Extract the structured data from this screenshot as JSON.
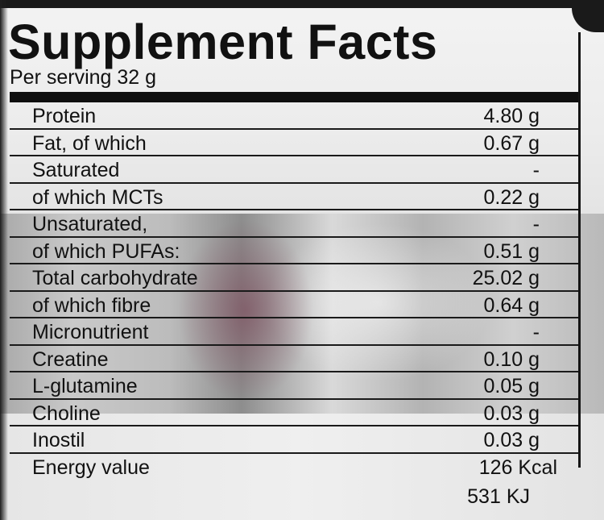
{
  "label": {
    "title": "Supplement Facts",
    "serving": "Per serving 32 g",
    "rows": [
      {
        "name": "Protein",
        "amount": "4.80 g"
      },
      {
        "name": "Fat, of which",
        "amount": "0.67 g"
      },
      {
        "name": "Saturated",
        "amount": "-"
      },
      {
        "name": "of which MCTs",
        "amount": "0.22 g"
      },
      {
        "name": "Unsaturated,",
        "amount": "-"
      },
      {
        "name": "of which PUFAs:",
        "amount": "0.51 g"
      },
      {
        "name": "Total carbohydrate",
        "amount": "25.02 g"
      },
      {
        "name": "of which fibre",
        "amount": "0.64 g"
      },
      {
        "name": "Micronutrient",
        "amount": "-"
      },
      {
        "name": "Creatine",
        "amount": "0.10 g"
      },
      {
        "name": "L-glutamine",
        "amount": "0.05 g"
      },
      {
        "name": "Choline",
        "amount": "0.03 g"
      },
      {
        "name": "Inostil",
        "amount": "0.03 g"
      },
      {
        "name": "Energy value",
        "amount": "126 Kcal",
        "amount2": "531 KJ"
      }
    ]
  }
}
